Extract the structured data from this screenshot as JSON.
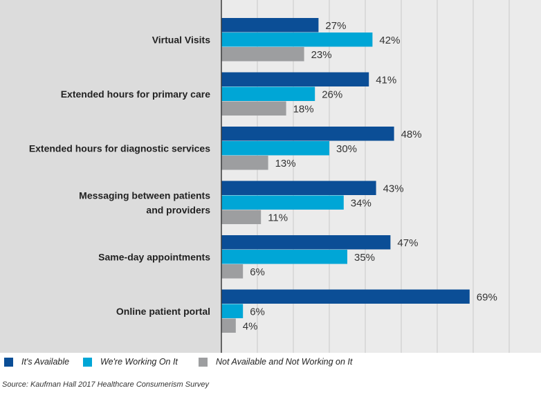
{
  "chart_data": {
    "type": "bar",
    "orientation": "horizontal",
    "categories": [
      [
        "Virtual Visits"
      ],
      [
        "Extended hours for primary care"
      ],
      [
        "Extended hours for diagnostic services"
      ],
      [
        "Messaging between patients",
        "and providers"
      ],
      [
        "Same-day appointments"
      ],
      [
        "Online patient portal"
      ]
    ],
    "series": [
      {
        "name": "It's Available",
        "color": "#0b4e96",
        "values": [
          27,
          41,
          48,
          43,
          47,
          69
        ],
        "labels": [
          "27%",
          "41%",
          "48%",
          "43%",
          "47%",
          "69%"
        ]
      },
      {
        "name": "We're Working On It",
        "color": "#00a6d6",
        "values": [
          42,
          26,
          30,
          34,
          35,
          6
        ],
        "labels": [
          "42%",
          "26%",
          "30%",
          "34%",
          "35%",
          "6%"
        ]
      },
      {
        "name": "Not Available and Not Working on It",
        "color": "#9d9ea0",
        "values": [
          23,
          18,
          13,
          11,
          6,
          4
        ],
        "labels": [
          "23%",
          "18%",
          "13%",
          "11%",
          "6%",
          "4%"
        ]
      }
    ],
    "xlim": [
      0,
      90
    ],
    "grid": true,
    "legend_position": "bottom-left"
  },
  "source_text": "Source: Kaufman Hall 2017 Healthcare Consumerism Survey",
  "colors": {
    "label_panel": "#dcdcdc",
    "plot_background": "#ebebeb",
    "gridline": "#c8c8c8",
    "axis": "#3a3a3a"
  }
}
